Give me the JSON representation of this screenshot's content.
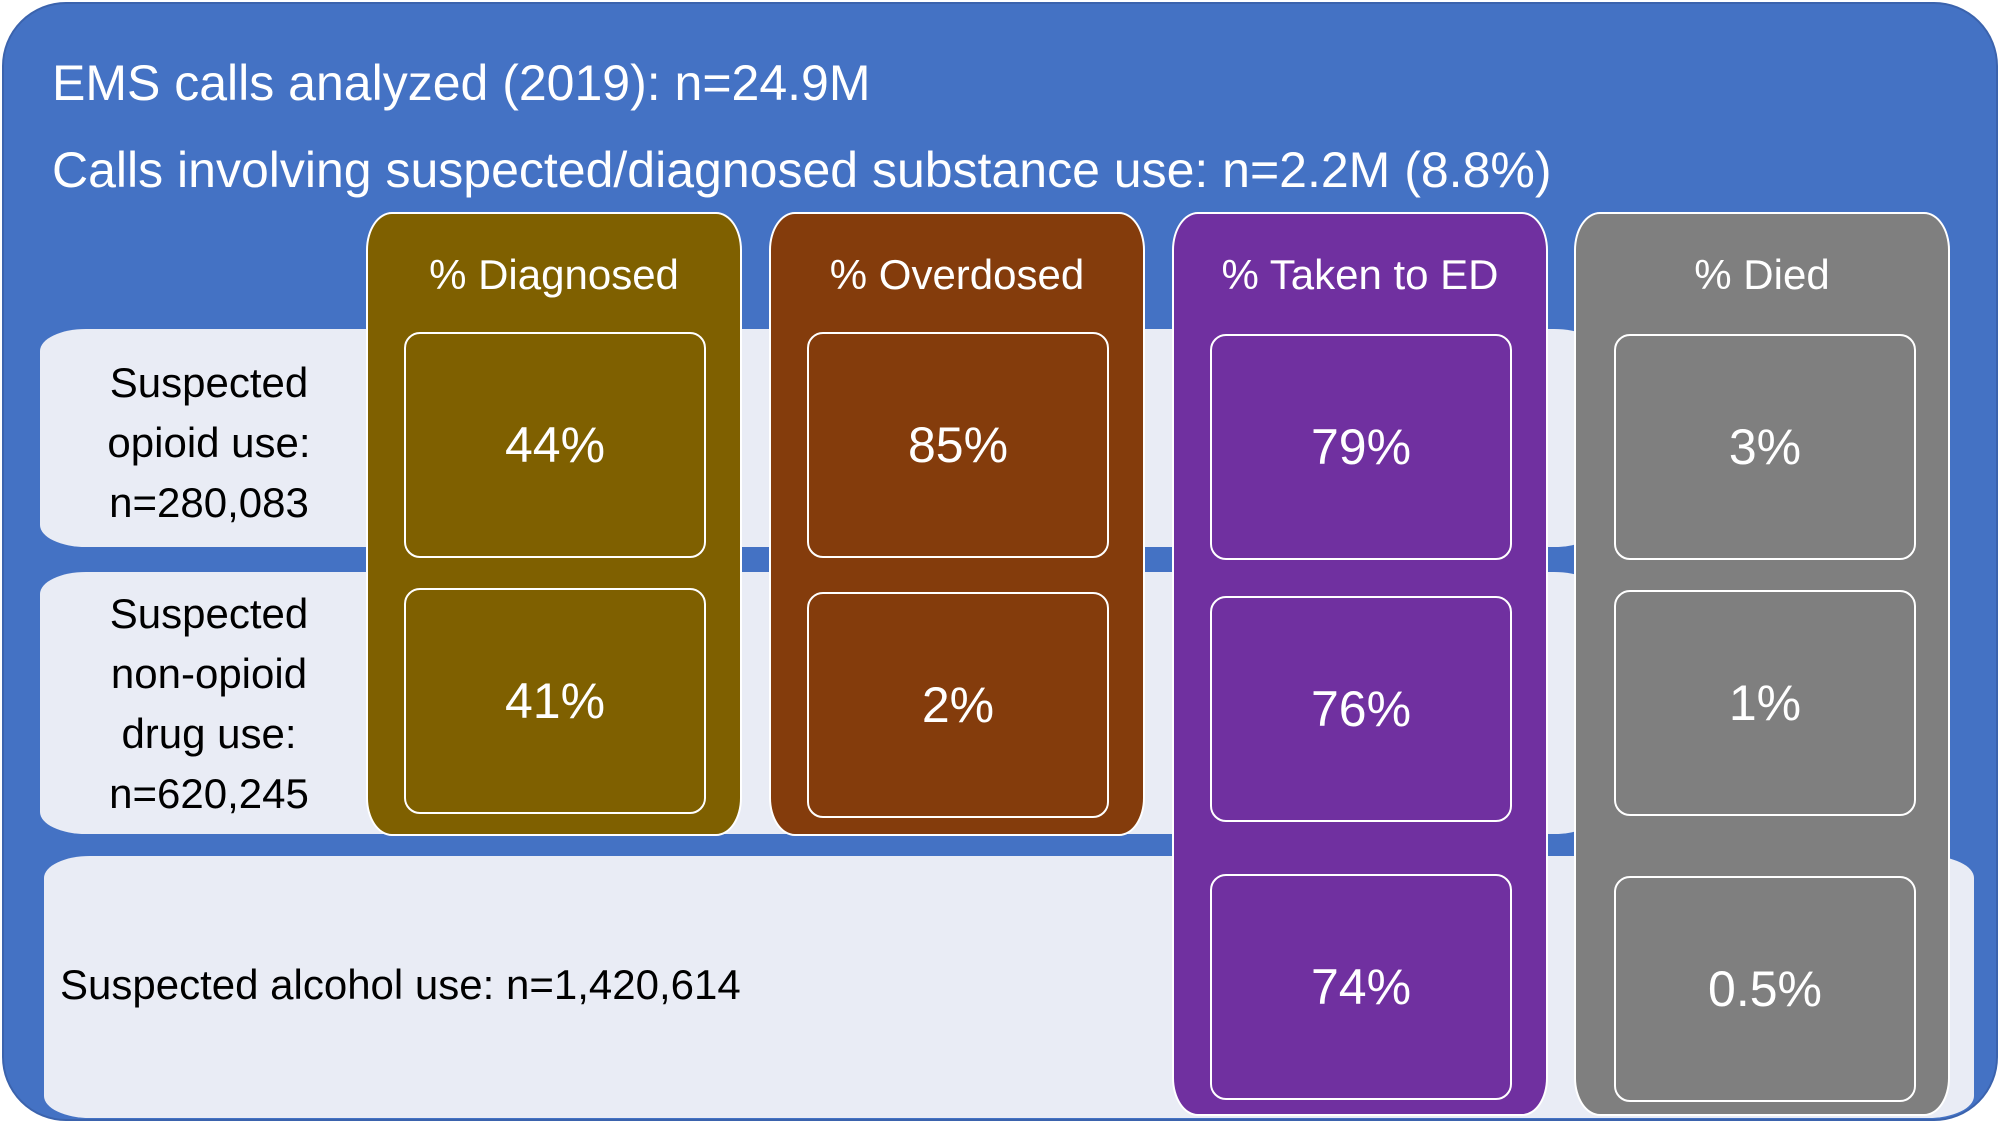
{
  "header": {
    "line1": "EMS calls analyzed (2019): n=24.9M",
    "line2": "Calls involving suspected/diagnosed substance use: n=2.2M (8.8%)"
  },
  "rows": [
    {
      "label_lines": [
        "Suspected",
        "opioid use:",
        "n=280,083"
      ]
    },
    {
      "label_lines": [
        "Suspected",
        "non-opioid",
        "drug use:",
        "n=620,245"
      ]
    },
    {
      "label": "Suspected alcohol use: n=1,420,614"
    }
  ],
  "columns": [
    {
      "header": "% Diagnosed",
      "color": "#7f6000",
      "values": [
        "44%",
        "41%"
      ]
    },
    {
      "header": "% Overdosed",
      "color": "#843c0c",
      "values": [
        "85%",
        "2%"
      ]
    },
    {
      "header": "% Taken to ED",
      "color": "#7030a0",
      "values": [
        "79%",
        "76%",
        "74%"
      ]
    },
    {
      "header": "% Died",
      "color": "#7f7f7f",
      "values": [
        "3%",
        "1%",
        "0.5%"
      ]
    }
  ],
  "colors": {
    "background": "#4472c4",
    "band": "#e9ecf5",
    "text_light": "#ffffff"
  }
}
